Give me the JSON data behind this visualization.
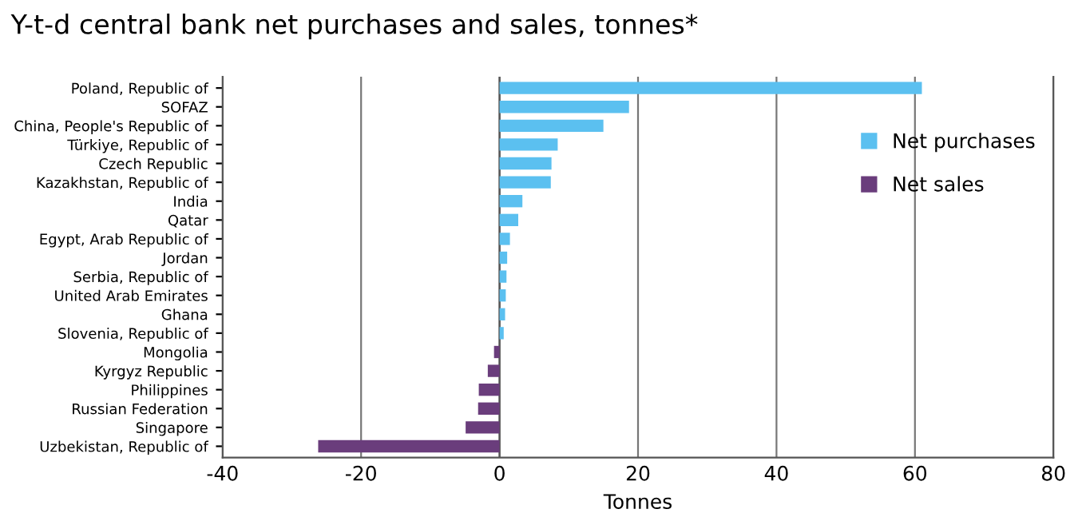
{
  "chart_data": {
    "type": "bar",
    "orientation": "horizontal",
    "title": "Y-t-d central bank net purchases and sales, tonnes*",
    "xlabel": "Tonnes",
    "categories": [
      "Poland, Republic of",
      "SOFAZ",
      "China, People's Republic of",
      "Türkiye, Republic of",
      "Czech Republic",
      "Kazakhstan, Republic of",
      "India",
      "Qatar",
      "Egypt, Arab Republic of",
      "Jordan",
      "Serbia, Republic of",
      "United Arab Emirates",
      "Ghana",
      "Slovenia, Republic of",
      "Mongolia",
      "Kyrgyz Republic",
      "Philippines",
      "Russian Federation",
      "Singapore",
      "Uzbekistan, Republic of"
    ],
    "series": [
      {
        "name": "Net purchases",
        "color": "#5bc0f0",
        "values": [
          61.0,
          18.7,
          15.0,
          8.4,
          7.5,
          7.4,
          3.3,
          2.7,
          1.5,
          1.1,
          1.0,
          0.9,
          0.8,
          0.6,
          null,
          null,
          null,
          null,
          null,
          null
        ]
      },
      {
        "name": "Net sales",
        "color": "#6a3d7c",
        "values": [
          null,
          null,
          null,
          null,
          null,
          null,
          null,
          null,
          null,
          null,
          null,
          null,
          null,
          null,
          -0.8,
          -1.7,
          -3.0,
          -3.1,
          -4.9,
          -26.2
        ]
      }
    ],
    "xlim": [
      -40,
      80
    ],
    "xticks": [
      -40,
      -20,
      0,
      20,
      40,
      60,
      80
    ],
    "grid": "x",
    "legend": "top right"
  }
}
